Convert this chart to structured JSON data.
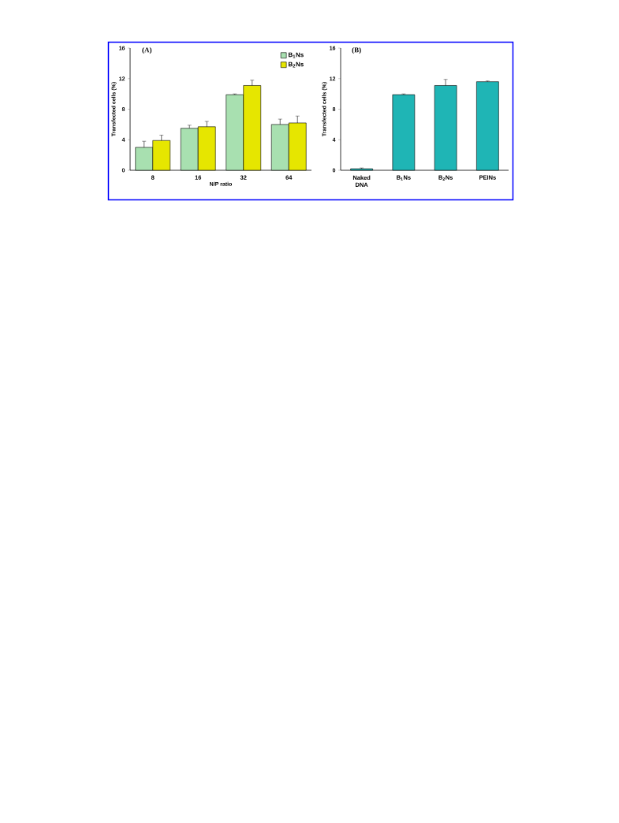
{
  "chart_data": [
    {
      "type": "bar",
      "title": "(A)",
      "xlabel": "N/P ratio",
      "ylabel": "Transfected cells (%)",
      "categories": [
        "8",
        "16",
        "32",
        "64"
      ],
      "series": [
        {
          "name": "B$_{1}$Ns",
          "color": "#a8e0b0",
          "values": [
            3.0,
            5.5,
            9.9,
            6.0
          ],
          "errors": [
            0.8,
            0.4,
            0.1,
            0.7
          ]
        },
        {
          "name": "B$_{2}$Ns",
          "color": "#e6e600",
          "values": [
            3.9,
            5.7,
            11.1,
            6.2
          ],
          "errors": [
            0.7,
            0.7,
            0.7,
            0.9
          ]
        }
      ],
      "ylim": [
        0,
        16
      ],
      "yticks": [
        0,
        4,
        8,
        12,
        16
      ],
      "legend": "top right"
    },
    {
      "type": "bar",
      "title": "(B)",
      "ylabel": "Transfected cells (%)",
      "categories": [
        "Naked DNA",
        "B$_{1}$Ns",
        "B$_{2}$Ns",
        "PEINs"
      ],
      "values": [
        0.2,
        9.9,
        11.1,
        11.6
      ],
      "errors": [
        0.1,
        0.1,
        0.8,
        0.1
      ],
      "color": "#1fb5b5",
      "ylim": [
        0,
        16
      ],
      "yticks": [
        0,
        4,
        8,
        12,
        16
      ]
    }
  ]
}
